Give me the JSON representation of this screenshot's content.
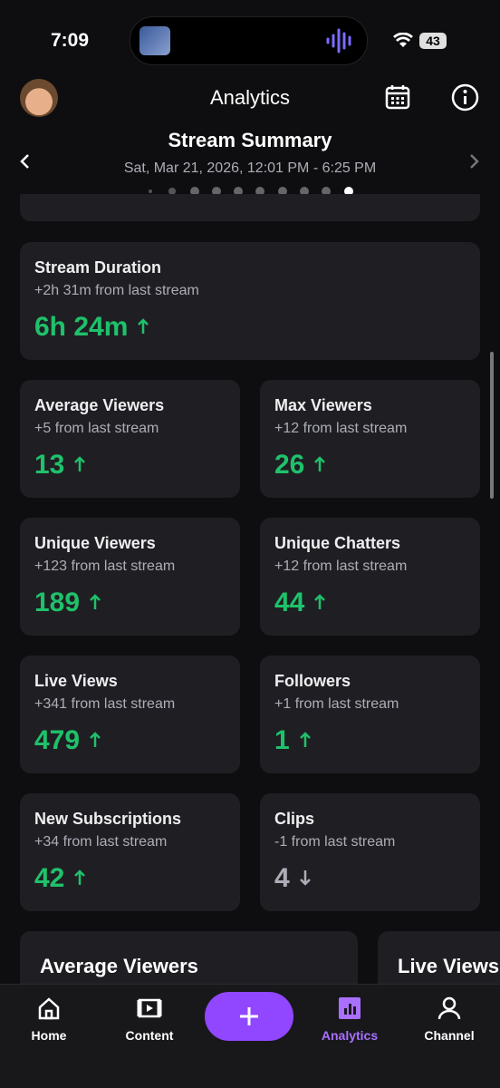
{
  "status_bar": {
    "time": "7:09",
    "battery": "43"
  },
  "header": {
    "title": "Analytics"
  },
  "summary": {
    "title": "Stream Summary",
    "date": "Sat, Mar 21, 2026, 12:01 PM - 6:25 PM"
  },
  "cards": [
    {
      "title": "Stream Duration",
      "change": "+2h 31m from last stream",
      "value": "6h 24m",
      "trend": "up",
      "wide": true
    },
    {
      "title": "Average Viewers",
      "change": "+5 from last stream",
      "value": "13",
      "trend": "up"
    },
    {
      "title": "Max Viewers",
      "change": "+12 from last stream",
      "value": "26",
      "trend": "up"
    },
    {
      "title": "Unique Viewers",
      "change": "+123 from last stream",
      "value": "189",
      "trend": "up"
    },
    {
      "title": "Unique Chatters",
      "change": "+12 from last stream",
      "value": "44",
      "trend": "up"
    },
    {
      "title": "Live Views",
      "change": "+341 from last stream",
      "value": "479",
      "trend": "up"
    },
    {
      "title": "Followers",
      "change": "+1 from last stream",
      "value": "1",
      "trend": "up"
    },
    {
      "title": "New Subscriptions",
      "change": "+34 from last stream",
      "value": "42",
      "trend": "up"
    },
    {
      "title": "Clips",
      "change": "-1 from last stream",
      "value": "4",
      "trend": "down"
    }
  ],
  "charts": [
    {
      "title": "Average Viewers"
    },
    {
      "title": "Live Views"
    }
  ],
  "nav": [
    {
      "label": "Home"
    },
    {
      "label": "Content"
    },
    {
      "label": "Analytics",
      "active": true
    },
    {
      "label": "Channel"
    }
  ]
}
